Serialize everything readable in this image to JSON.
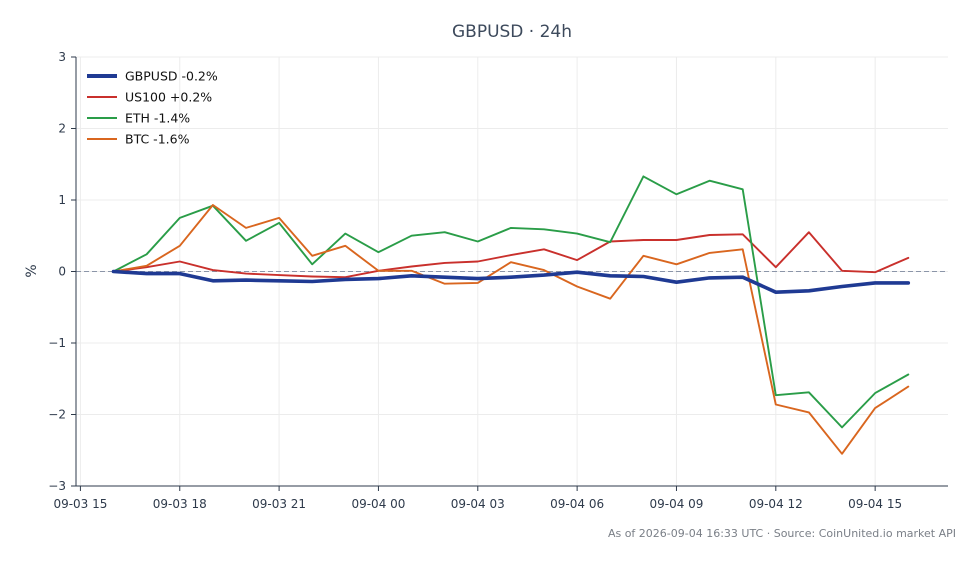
{
  "chart_data": {
    "type": "line",
    "title": "GBPUSD · 24h",
    "xlabel": "",
    "ylabel": "%",
    "x": [
      "09-03 16:00",
      "09-03 17:00",
      "09-03 18:00",
      "09-03 19:00",
      "09-03 20:00",
      "09-03 21:00",
      "09-03 22:00",
      "09-03 23:00",
      "09-04 00:00",
      "09-04 01:00",
      "09-04 02:00",
      "09-04 03:00",
      "09-04 04:00",
      "09-04 05:00",
      "09-04 06:00",
      "09-04 07:00",
      "09-04 08:00",
      "09-04 09:00",
      "09-04 10:00",
      "09-04 11:00",
      "09-04 12:00",
      "09-04 13:00",
      "09-04 14:00",
      "09-04 15:00",
      "09-04 16:00"
    ],
    "xlim": [
      "09-03 14:52",
      "09-04 17:12"
    ],
    "xticks": [
      {
        "label": "09-03 15",
        "value": "09-03 15:00"
      },
      {
        "label": "09-03 18",
        "value": "09-03 18:00"
      },
      {
        "label": "09-03 21",
        "value": "09-03 21:00"
      },
      {
        "label": "09-04 00",
        "value": "09-04 00:00"
      },
      {
        "label": "09-04 03",
        "value": "09-04 03:00"
      },
      {
        "label": "09-04 06",
        "value": "09-04 06:00"
      },
      {
        "label": "09-04 09",
        "value": "09-04 09:00"
      },
      {
        "label": "09-04 12",
        "value": "09-04 12:00"
      },
      {
        "label": "09-04 15",
        "value": "09-04 15:00"
      }
    ],
    "ylim": [
      -3,
      3
    ],
    "yticks": [
      {
        "label": "−3",
        "value": -3
      },
      {
        "label": "−2",
        "value": -2
      },
      {
        "label": "−1",
        "value": -1
      },
      {
        "label": "0",
        "value": 0
      },
      {
        "label": "1",
        "value": 1
      },
      {
        "label": "2",
        "value": 2
      },
      {
        "label": "3",
        "value": 3
      }
    ],
    "grid": true,
    "zero_line": true,
    "legend": "top-left",
    "series": [
      {
        "name": "GBPUSD -0.2%",
        "color": "#1f3a93",
        "emphasis": true,
        "values": [
          0.0,
          -0.03,
          -0.03,
          -0.13,
          -0.12,
          -0.13,
          -0.14,
          -0.11,
          -0.1,
          -0.06,
          -0.08,
          -0.1,
          -0.08,
          -0.05,
          -0.01,
          -0.06,
          -0.07,
          -0.15,
          -0.09,
          -0.08,
          -0.29,
          -0.27,
          -0.21,
          -0.16,
          -0.16
        ]
      },
      {
        "name": "US100 +0.2%",
        "color": "#c9302c",
        "emphasis": false,
        "values": [
          0.0,
          0.06,
          0.14,
          0.02,
          -0.03,
          -0.05,
          -0.07,
          -0.08,
          0.01,
          0.07,
          0.12,
          0.14,
          0.23,
          0.31,
          0.16,
          0.42,
          0.44,
          0.44,
          0.51,
          0.52,
          0.06,
          0.55,
          0.01,
          -0.01,
          0.19
        ]
      },
      {
        "name": "ETH -1.4%",
        "color": "#2a9d48",
        "emphasis": false,
        "values": [
          0.0,
          0.24,
          0.75,
          0.92,
          0.43,
          0.68,
          0.1,
          0.53,
          0.27,
          0.5,
          0.55,
          0.42,
          0.61,
          0.59,
          0.53,
          0.41,
          1.33,
          1.08,
          1.27,
          1.15,
          -1.73,
          -1.69,
          -2.18,
          -1.7,
          -1.44
        ]
      },
      {
        "name": "BTC -1.6%",
        "color": "#d9661f",
        "emphasis": false,
        "values": [
          0.0,
          0.08,
          0.36,
          0.93,
          0.61,
          0.75,
          0.22,
          0.36,
          0.01,
          0.01,
          -0.17,
          -0.16,
          0.13,
          0.02,
          -0.21,
          -0.38,
          0.22,
          0.1,
          0.26,
          0.31,
          -1.86,
          -1.97,
          -2.55,
          -1.91,
          -1.61
        ]
      }
    ]
  },
  "footer": "As of 2026-09-04 16:33 UTC · Source: CoinUnited.io market API"
}
